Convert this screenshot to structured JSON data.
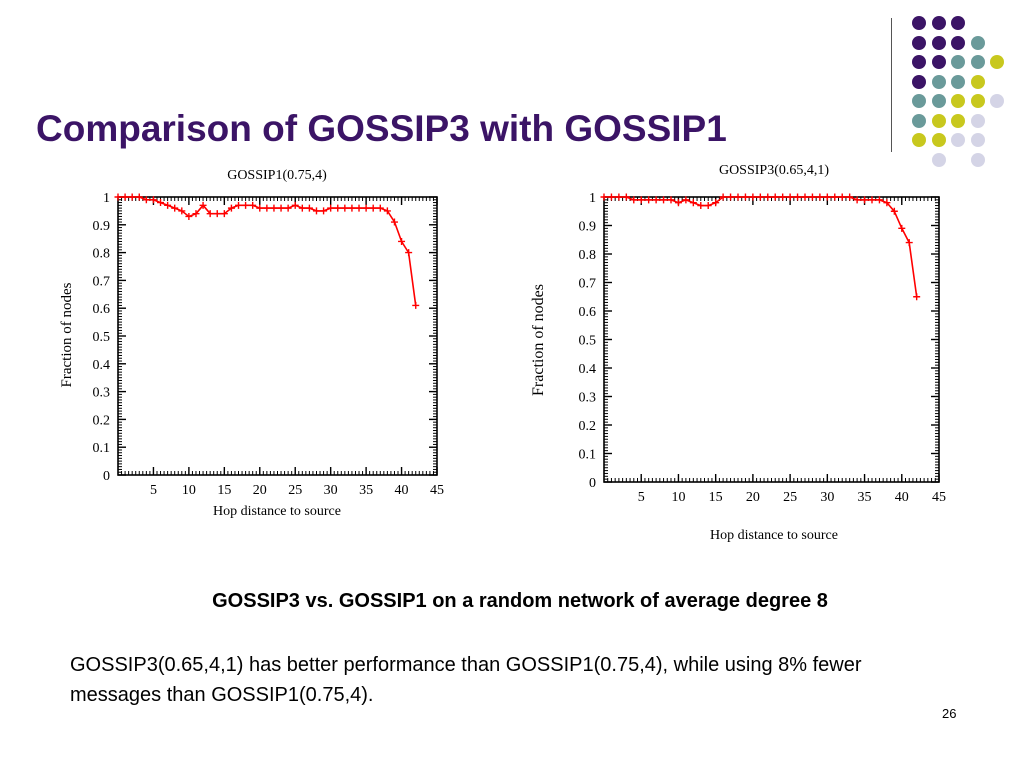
{
  "slide": {
    "title": "Comparison of GOSSIP3 with GOSSIP1",
    "caption": "GOSSIP3 vs. GOSSIP1 on a random network of average degree 8",
    "body": "GOSSIP3(0.65,4,1) has better performance than GOSSIP1(0.75,4),   while using 8% fewer messages than GOSSIP1(0.75,4).",
    "page_number": "26"
  },
  "colors": {
    "title": "#3b1466",
    "series": "#ff0000",
    "dot_purple": "#3b1466",
    "dot_teal": "#6a9a9a",
    "dot_yellow": "#c8c81e",
    "dot_lavender": "#d4d4e6"
  },
  "decoration": {
    "dot_grid": [
      [
        "purple",
        "purple",
        "purple",
        "",
        "",
        ""
      ],
      [
        "purple",
        "purple",
        "purple",
        "teal",
        "",
        ""
      ],
      [
        "purple",
        "purple",
        "teal",
        "teal",
        "yellow",
        ""
      ],
      [
        "purple",
        "teal",
        "teal",
        "yellow",
        "",
        ""
      ],
      [
        "teal",
        "teal",
        "yellow",
        "yellow",
        "lavender",
        ""
      ],
      [
        "teal",
        "yellow",
        "yellow",
        "lavender",
        "",
        ""
      ],
      [
        "yellow",
        "yellow",
        "lavender",
        "lavender",
        "",
        ""
      ],
      [
        "",
        "lavender",
        "",
        "lavender",
        "",
        ""
      ]
    ]
  },
  "chart_data": [
    {
      "type": "line",
      "title": "GOSSIP1(0.75,4)",
      "xlabel": "Hop distance to source",
      "ylabel": "Fraction of nodes",
      "xlim": [
        0,
        45
      ],
      "ylim": [
        0,
        1
      ],
      "xticks": [
        5,
        10,
        15,
        20,
        25,
        30,
        35,
        40,
        45
      ],
      "yticks": [
        0,
        0.1,
        0.2,
        0.3,
        0.4,
        0.5,
        0.6,
        0.7,
        0.8,
        0.9,
        1
      ],
      "grid": false,
      "series": [
        {
          "x": [
            0,
            1,
            2,
            3,
            4,
            5,
            6,
            7,
            8,
            9,
            10,
            11,
            12,
            13,
            14,
            15,
            16,
            17,
            18,
            19,
            20,
            21,
            22,
            23,
            24,
            25,
            26,
            27,
            28,
            29,
            30,
            31,
            32,
            33,
            34,
            35,
            36,
            37,
            38,
            39,
            40,
            41,
            42
          ],
          "y": [
            1,
            1,
            1,
            1,
            0.99,
            0.99,
            0.98,
            0.97,
            0.96,
            0.95,
            0.93,
            0.94,
            0.97,
            0.94,
            0.94,
            0.94,
            0.96,
            0.97,
            0.97,
            0.97,
            0.96,
            0.96,
            0.96,
            0.96,
            0.96,
            0.97,
            0.96,
            0.96,
            0.95,
            0.95,
            0.96,
            0.96,
            0.96,
            0.96,
            0.96,
            0.96,
            0.96,
            0.96,
            0.95,
            0.91,
            0.84,
            0.8,
            0.61
          ]
        }
      ]
    },
    {
      "type": "line",
      "title": "GOSSIP3(0.65,4,1)",
      "xlabel": "Hop distance to source",
      "ylabel": "Fraction of nodes",
      "xlim": [
        0,
        45
      ],
      "ylim": [
        0,
        1
      ],
      "xticks": [
        5,
        10,
        15,
        20,
        25,
        30,
        35,
        40,
        45
      ],
      "yticks": [
        0,
        0.1,
        0.2,
        0.3,
        0.4,
        0.5,
        0.6,
        0.7,
        0.8,
        0.9,
        1
      ],
      "grid": false,
      "series": [
        {
          "x": [
            0,
            1,
            2,
            3,
            4,
            5,
            6,
            7,
            8,
            9,
            10,
            11,
            12,
            13,
            14,
            15,
            16,
            17,
            18,
            19,
            20,
            21,
            22,
            23,
            24,
            25,
            26,
            27,
            28,
            29,
            30,
            31,
            32,
            33,
            34,
            35,
            36,
            37,
            38,
            39,
            40,
            41,
            42
          ],
          "y": [
            1,
            1,
            1,
            1,
            0.99,
            0.99,
            0.99,
            0.99,
            0.99,
            0.99,
            0.98,
            0.99,
            0.98,
            0.97,
            0.97,
            0.98,
            1,
            1,
            1,
            1,
            1,
            1,
            1,
            1,
            1,
            1,
            1,
            1,
            1,
            1,
            1,
            1,
            1,
            1,
            0.99,
            0.99,
            0.99,
            0.99,
            0.98,
            0.95,
            0.89,
            0.84,
            0.65
          ]
        }
      ]
    }
  ]
}
